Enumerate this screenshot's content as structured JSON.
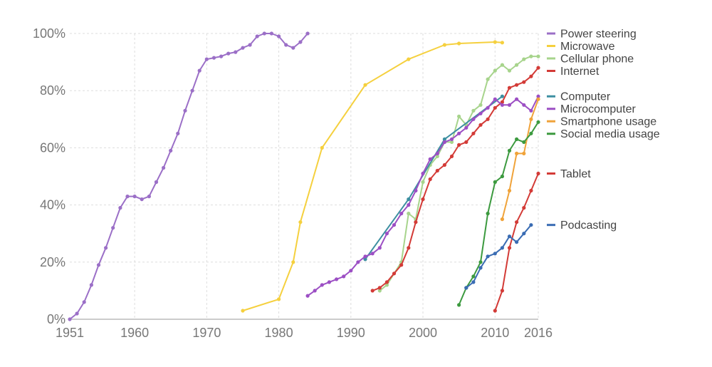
{
  "chart_data": {
    "type": "line",
    "title": "",
    "xlabel": "",
    "ylabel": "",
    "xlim": [
      1951,
      2016
    ],
    "ylim": [
      0,
      100
    ],
    "grid": true,
    "legend_placement": "right",
    "x_ticks": [
      {
        "value": 1951,
        "label": "1951"
      },
      {
        "value": 1960,
        "label": "1960"
      },
      {
        "value": 1970,
        "label": "1970"
      },
      {
        "value": 1980,
        "label": "1980"
      },
      {
        "value": 1990,
        "label": "1990"
      },
      {
        "value": 2000,
        "label": "2000"
      },
      {
        "value": 2010,
        "label": "2010"
      },
      {
        "value": 2016,
        "label": "2016"
      }
    ],
    "y_ticks": [
      {
        "value": 0,
        "label": "0%"
      },
      {
        "value": 20,
        "label": "20%"
      },
      {
        "value": 40,
        "label": "40%"
      },
      {
        "value": 60,
        "label": "60%"
      },
      {
        "value": 80,
        "label": "80%"
      },
      {
        "value": 100,
        "label": "100%"
      }
    ],
    "series": [
      {
        "name": "Power steering",
        "color": "#9b6fc7",
        "legend_value": 100,
        "points": [
          [
            1951,
            0
          ],
          [
            1952,
            2
          ],
          [
            1953,
            6
          ],
          [
            1954,
            12
          ],
          [
            1955,
            19
          ],
          [
            1956,
            25
          ],
          [
            1957,
            32
          ],
          [
            1958,
            39
          ],
          [
            1959,
            43
          ],
          [
            1960,
            43
          ],
          [
            1961,
            42
          ],
          [
            1962,
            43
          ],
          [
            1963,
            48
          ],
          [
            1964,
            53
          ],
          [
            1965,
            59
          ],
          [
            1966,
            65
          ],
          [
            1967,
            73
          ],
          [
            1968,
            80
          ],
          [
            1969,
            87
          ],
          [
            1970,
            91
          ],
          [
            1971,
            91.5
          ],
          [
            1972,
            92
          ],
          [
            1973,
            93
          ],
          [
            1974,
            93.5
          ],
          [
            1975,
            95
          ],
          [
            1976,
            96
          ],
          [
            1977,
            99
          ],
          [
            1978,
            100
          ],
          [
            1979,
            100
          ],
          [
            1980,
            99
          ],
          [
            1981,
            96
          ],
          [
            1982,
            95
          ],
          [
            1983,
            97
          ],
          [
            1984,
            100
          ]
        ]
      },
      {
        "name": "Microwave",
        "color": "#f5d03e",
        "legend_value": 97,
        "points": [
          [
            1975,
            3
          ],
          [
            1980,
            7
          ],
          [
            1982,
            20
          ],
          [
            1983,
            34
          ],
          [
            1986,
            60
          ],
          [
            1992,
            82
          ],
          [
            1998,
            91
          ],
          [
            2003,
            96
          ],
          [
            2005,
            96.5
          ],
          [
            2010,
            97
          ],
          [
            2011,
            96.8
          ]
        ]
      },
      {
        "name": "Cellular phone",
        "color": "#a7d48c",
        "legend_value": 92,
        "points": [
          [
            1994,
            10
          ],
          [
            1995,
            12
          ],
          [
            1997,
            20
          ],
          [
            1998,
            37
          ],
          [
            1999,
            35
          ],
          [
            2000,
            48
          ],
          [
            2001,
            54
          ],
          [
            2002,
            57
          ],
          [
            2003,
            62
          ],
          [
            2004,
            62
          ],
          [
            2005,
            71
          ],
          [
            2006,
            68
          ],
          [
            2007,
            73
          ],
          [
            2008,
            75
          ],
          [
            2009,
            84
          ],
          [
            2010,
            87
          ],
          [
            2011,
            89
          ],
          [
            2012,
            87
          ],
          [
            2013,
            89
          ],
          [
            2014,
            91
          ],
          [
            2015,
            92
          ],
          [
            2016,
            92
          ]
        ]
      },
      {
        "name": "Internet",
        "color": "#d33b37",
        "legend_value": 88,
        "points": [
          [
            1993,
            10
          ],
          [
            1994,
            11
          ],
          [
            1995,
            13
          ],
          [
            1996,
            16
          ],
          [
            1997,
            19
          ],
          [
            1998,
            25
          ],
          [
            1999,
            34
          ],
          [
            2000,
            42
          ],
          [
            2001,
            49
          ],
          [
            2002,
            52
          ],
          [
            2003,
            54
          ],
          [
            2004,
            57
          ],
          [
            2005,
            61
          ],
          [
            2006,
            62
          ],
          [
            2007,
            65
          ],
          [
            2008,
            68
          ],
          [
            2009,
            70
          ],
          [
            2010,
            74
          ],
          [
            2011,
            76
          ],
          [
            2012,
            81
          ],
          [
            2013,
            82
          ],
          [
            2014,
            83
          ],
          [
            2015,
            85
          ],
          [
            2016,
            88
          ]
        ]
      },
      {
        "name": "Computer",
        "color": "#3d8fa1",
        "legend_value": 78,
        "points": [
          [
            1992,
            21
          ],
          [
            1998,
            42
          ],
          [
            2003,
            63
          ],
          [
            2011,
            78
          ]
        ]
      },
      {
        "name": "Microcomputer",
        "color": "#9c4fc4",
        "legend_value": 78,
        "points": [
          [
            1984,
            8.2
          ],
          [
            1985,
            10
          ],
          [
            1986,
            12
          ],
          [
            1987,
            13
          ],
          [
            1988,
            14
          ],
          [
            1989,
            15
          ],
          [
            1990,
            17
          ],
          [
            1991,
            20
          ],
          [
            1992,
            22
          ],
          [
            1993,
            23
          ],
          [
            1994,
            25
          ],
          [
            1995,
            30
          ],
          [
            1996,
            33
          ],
          [
            1997,
            37
          ],
          [
            1998,
            40
          ],
          [
            1999,
            45
          ],
          [
            2000,
            51
          ],
          [
            2001,
            56
          ],
          [
            2002,
            58
          ],
          [
            2003,
            62
          ],
          [
            2004,
            63
          ],
          [
            2005,
            65
          ],
          [
            2006,
            67
          ],
          [
            2007,
            70
          ],
          [
            2008,
            72
          ],
          [
            2009,
            74
          ],
          [
            2010,
            77
          ],
          [
            2011,
            75
          ],
          [
            2012,
            75
          ],
          [
            2013,
            77
          ],
          [
            2014,
            75
          ],
          [
            2015,
            73
          ],
          [
            2016,
            78
          ]
        ]
      },
      {
        "name": "Smartphone usage",
        "color": "#f0a33a",
        "legend_value": 77,
        "points": [
          [
            2011,
            35
          ],
          [
            2012,
            45
          ],
          [
            2013,
            58
          ],
          [
            2014,
            58
          ],
          [
            2015,
            70
          ],
          [
            2016,
            77
          ]
        ]
      },
      {
        "name": "Social media usage",
        "color": "#3c9a3f",
        "legend_value": 69,
        "points": [
          [
            2005,
            5
          ],
          [
            2006,
            11
          ],
          [
            2007,
            15
          ],
          [
            2008,
            20
          ],
          [
            2009,
            37
          ],
          [
            2010,
            48
          ],
          [
            2011,
            50
          ],
          [
            2012,
            59
          ],
          [
            2013,
            63
          ],
          [
            2014,
            62
          ],
          [
            2015,
            65
          ],
          [
            2016,
            69
          ]
        ]
      },
      {
        "name": "Tablet",
        "color": "#d33b37",
        "legend_value": 51,
        "points": [
          [
            2010,
            3
          ],
          [
            2011,
            10
          ],
          [
            2012,
            25
          ],
          [
            2013,
            34
          ],
          [
            2014,
            39
          ],
          [
            2015,
            45
          ],
          [
            2016,
            51
          ]
        ]
      },
      {
        "name": "Podcasting",
        "color": "#3a6cb3",
        "legend_value": 33,
        "points": [
          [
            2006,
            11
          ],
          [
            2007,
            13
          ],
          [
            2008,
            18
          ],
          [
            2009,
            22
          ],
          [
            2010,
            23
          ],
          [
            2011,
            25
          ],
          [
            2012,
            29
          ],
          [
            2013,
            27
          ],
          [
            2014,
            30
          ],
          [
            2015,
            33
          ]
        ]
      }
    ]
  }
}
